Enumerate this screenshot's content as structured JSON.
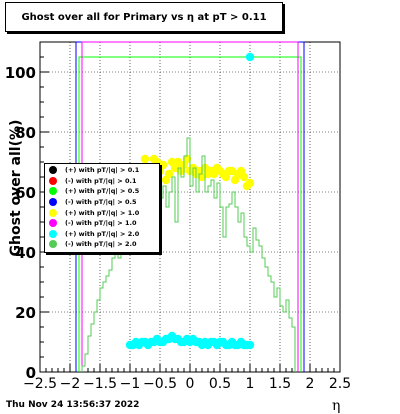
{
  "chart_data": {
    "type": "histogram",
    "title": "Ghost over all for Primary vs   η at pT > 0.11",
    "ylabel": "Ghost over all(%)",
    "xlabel": "η",
    "xlim": [
      -2.5,
      2.5
    ],
    "ylim": [
      0,
      110
    ],
    "x_ticks": [
      -2.5,
      -2,
      -1.5,
      -1,
      -0.5,
      0,
      0.5,
      1,
      1.5,
      2,
      2.5
    ],
    "x_tick_labels": [
      "−2.5",
      "−2",
      "−1.5",
      "−1",
      "−0.5",
      "0",
      "0.5",
      "1",
      "1.5",
      "2",
      "2.5"
    ],
    "y_ticks": [
      0,
      20,
      40,
      60,
      80,
      100
    ],
    "series": [
      {
        "name": "(+) with pT/|q| > 0.1",
        "color": "#000000",
        "style": "line",
        "x": [],
        "y": []
      },
      {
        "name": "(-) with pT/|q| > 0.1",
        "color": "#ff0000",
        "style": "line",
        "x": [],
        "y": []
      },
      {
        "name": "(+) with pT/|q| > 0.5",
        "color": "#00ff00",
        "style": "step",
        "x": [
          -1.85,
          -1.8,
          -1.75,
          -1.7,
          -1.65,
          -1.6,
          -1.55,
          -1.5,
          -1.45,
          -1.4,
          -1.35,
          -1.3,
          -1.25,
          -1.2,
          -1.15,
          -1.1,
          -1.05,
          -1.0,
          -0.95,
          -0.9,
          -0.85,
          -0.8,
          -0.75,
          -0.7,
          -0.65,
          -0.6,
          -0.55,
          -0.5,
          -0.45,
          -0.4,
          -0.35,
          -0.3,
          -0.25,
          -0.2,
          -0.15,
          -0.1,
          -0.05,
          0.0,
          0.05,
          0.1,
          0.15,
          0.2,
          0.25,
          0.3,
          0.35,
          0.4,
          0.45,
          0.5,
          0.55,
          0.6,
          0.65,
          0.7,
          0.75,
          0.8,
          0.85,
          0.9,
          0.95,
          1.0,
          1.05,
          1.1,
          1.15,
          1.2,
          1.25,
          1.3,
          1.35,
          1.4,
          1.45,
          1.5,
          1.55,
          1.6,
          1.65,
          1.7,
          1.75,
          1.8
        ],
        "y": [
          105,
          105,
          105,
          105,
          105,
          105,
          105,
          105,
          105,
          105,
          105,
          105,
          105,
          105,
          105,
          105,
          105,
          105,
          105,
          105,
          105,
          105,
          105,
          105,
          105,
          105,
          105,
          105,
          105,
          105,
          105,
          105,
          105,
          105,
          105,
          105,
          105,
          105,
          105,
          105,
          105,
          105,
          105,
          105,
          105,
          105,
          105,
          105,
          105,
          105,
          105,
          105,
          105,
          105,
          105,
          105,
          105,
          105,
          105,
          105,
          105,
          105,
          105,
          105,
          105,
          105,
          105,
          105,
          105,
          105,
          105,
          105,
          105,
          105
        ]
      },
      {
        "name": "(-) with pT/|q| > 0.5",
        "color": "#0000ff",
        "style": "line",
        "x": [
          -1.9,
          -1.9,
          1.9,
          1.9
        ],
        "y": [
          0,
          110,
          110,
          0
        ]
      },
      {
        "name": "(+) with pT/|q| > 1.0",
        "color": "#ffff00",
        "style": "markers",
        "x": [
          -0.75,
          -0.6,
          -0.55,
          -0.5,
          -0.45,
          -0.4,
          -0.35,
          -0.3,
          -0.25,
          -0.2,
          -0.15,
          -0.1,
          -0.05,
          0.0,
          0.05,
          0.1,
          0.15,
          0.2,
          0.25,
          0.3,
          0.35,
          0.4,
          0.45,
          0.5,
          0.55,
          0.6,
          0.65,
          0.7,
          0.75,
          0.8,
          0.85,
          0.9,
          0.95,
          1.0
        ],
        "y": [
          71,
          71,
          70,
          67,
          69,
          64,
          66,
          70,
          68,
          70,
          67,
          69,
          71,
          67,
          68,
          66,
          67,
          65,
          68,
          66,
          67,
          66,
          68,
          67,
          66,
          65,
          67,
          67,
          64,
          66,
          67,
          65,
          62,
          63
        ]
      },
      {
        "name": "(-) with pT/|q| > 1.0",
        "color": "#ff00ff",
        "style": "line",
        "x": [
          -1.8,
          -1.8,
          1.8,
          1.8
        ],
        "y": [
          0,
          110,
          110,
          0
        ]
      },
      {
        "name": "(+) with pT/|q| > 2.0",
        "color": "#00ffff",
        "style": "markers",
        "x": [
          -1.0,
          -0.95,
          -0.9,
          -0.85,
          -0.8,
          -0.75,
          -0.7,
          -0.65,
          -0.6,
          -0.55,
          -0.5,
          -0.45,
          -0.4,
          -0.35,
          -0.3,
          -0.25,
          -0.2,
          -0.15,
          -0.1,
          -0.05,
          0.0,
          0.05,
          0.1,
          0.15,
          0.2,
          0.25,
          0.3,
          0.35,
          0.4,
          0.45,
          0.5,
          0.55,
          0.6,
          0.65,
          0.7,
          0.75,
          0.8,
          0.85,
          0.9,
          0.95,
          1.0,
          1.0
        ],
        "y": [
          9,
          9,
          10,
          9,
          10,
          10,
          9,
          10,
          10,
          11,
          10,
          10,
          11,
          11,
          12,
          11,
          11,
          10,
          10,
          11,
          10,
          11,
          10,
          10,
          9,
          10,
          9,
          10,
          10,
          9,
          10,
          10,
          9,
          9,
          10,
          9,
          9,
          10,
          9,
          9,
          9,
          105
        ]
      },
      {
        "name": "(-) with pT/|q| > 2.0",
        "color": "#55cc55",
        "style": "step",
        "x": [
          -1.8,
          -1.75,
          -1.7,
          -1.65,
          -1.6,
          -1.55,
          -1.5,
          -1.45,
          -1.4,
          -1.35,
          -1.3,
          -1.25,
          -1.2,
          -1.15,
          -1.1,
          -1.05,
          -1.0,
          -0.95,
          -0.9,
          -0.85,
          -0.8,
          -0.75,
          -0.7,
          -0.65,
          -0.6,
          -0.55,
          -0.5,
          -0.45,
          -0.4,
          -0.35,
          -0.3,
          -0.25,
          -0.2,
          -0.15,
          -0.1,
          -0.05,
          0.0,
          0.05,
          0.1,
          0.15,
          0.2,
          0.25,
          0.3,
          0.35,
          0.4,
          0.45,
          0.5,
          0.55,
          0.6,
          0.65,
          0.7,
          0.75,
          0.8,
          0.85,
          0.9,
          0.95,
          1.0,
          1.05,
          1.1,
          1.15,
          1.2,
          1.25,
          1.3,
          1.35,
          1.4,
          1.45,
          1.5,
          1.55,
          1.6,
          1.65,
          1.7
        ],
        "y": [
          2,
          6,
          12,
          16,
          20,
          24,
          28,
          30,
          32,
          34,
          38,
          40,
          38,
          42,
          44,
          46,
          40,
          45,
          44,
          42,
          46,
          44,
          50,
          44,
          47,
          52,
          58,
          62,
          55,
          60,
          65,
          50,
          68,
          65,
          72,
          78,
          62,
          68,
          60,
          66,
          72,
          60,
          62,
          64,
          58,
          63,
          55,
          45,
          55,
          56,
          60,
          55,
          50,
          53,
          45,
          42,
          40,
          48,
          44,
          42,
          38,
          35,
          32,
          30,
          25,
          28,
          22,
          20,
          24,
          18,
          15
        ]
      }
    ],
    "legend_position": "middle-left"
  },
  "footer": "Thu Nov 24 13:56:37 2022"
}
